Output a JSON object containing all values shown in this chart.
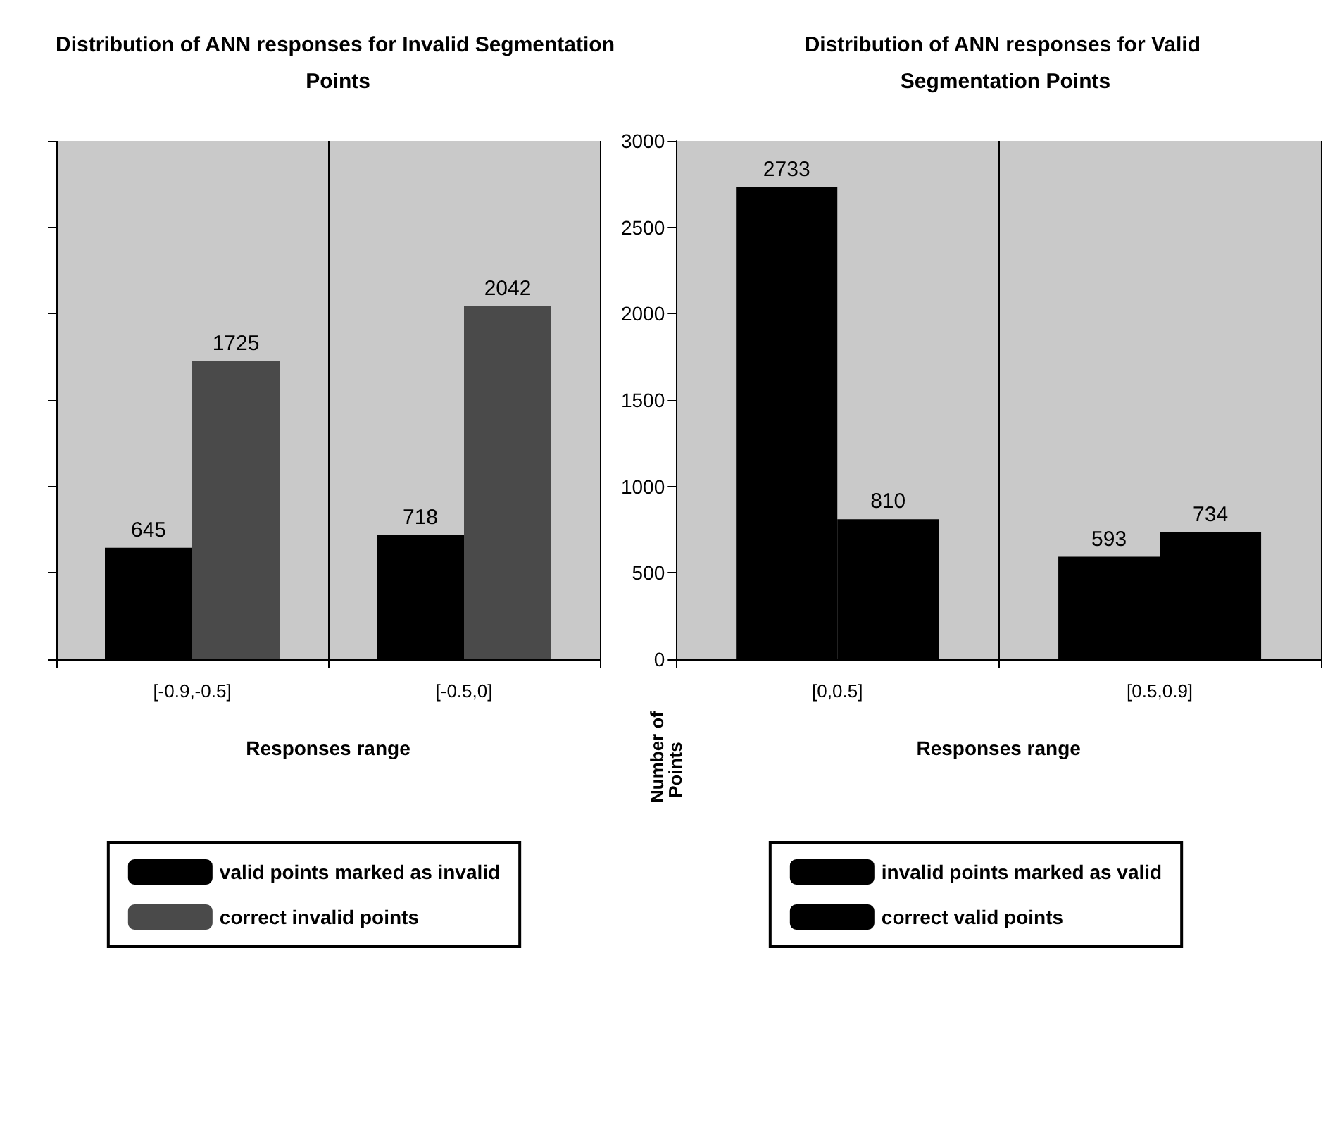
{
  "chart_data": [
    {
      "type": "bar",
      "title": "Distribution of ANN responses for Invalid Segmentation Points",
      "xlabel": "Responses range",
      "categories": [
        "[-0.9,-0.5]",
        "[-0.5,0]"
      ],
      "series": [
        {
          "name": "valid points marked as invalid",
          "color": "#000000",
          "values": [
            645,
            718
          ]
        },
        {
          "name": "correct invalid points",
          "color": "#4a4a4a",
          "values": [
            1725,
            2042
          ]
        }
      ],
      "ylim": [
        0,
        3000
      ],
      "yticks": [
        0,
        500,
        1000,
        1500,
        2000,
        2500,
        3000
      ],
      "tick_labels": "x",
      "grid": "x",
      "legend": "bottom",
      "data_labels": true
    },
    {
      "type": "bar",
      "title": "Distribution of ANN responses for Valid Segmentation Points",
      "xlabel": "Responses range",
      "ylabel": "Number of Points",
      "categories": [
        "[0,0.5]",
        "[0.5,0.9]"
      ],
      "series": [
        {
          "name": "invalid points marked as valid",
          "color": "#000000",
          "values": [
            2733,
            593
          ]
        },
        {
          "name": "correct valid points",
          "color": "#000000",
          "values": [
            810,
            734
          ]
        }
      ],
      "ylim": [
        0,
        3000
      ],
      "yticks": [
        0,
        500,
        1000,
        1500,
        2000,
        2500,
        3000
      ],
      "grid": "x",
      "legend": "bottom",
      "data_labels": true
    }
  ]
}
